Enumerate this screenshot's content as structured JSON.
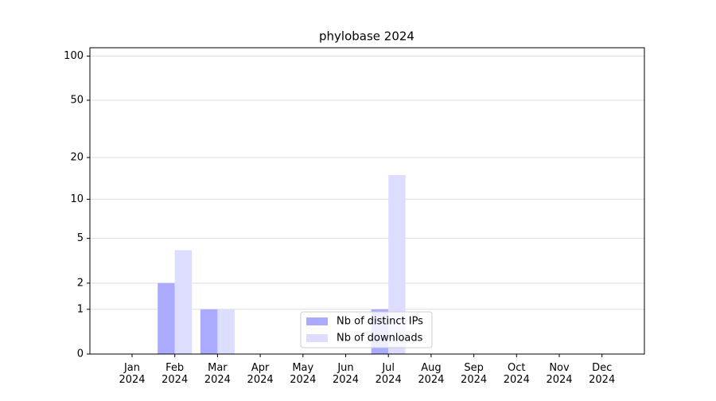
{
  "chart_data": {
    "type": "bar",
    "title": "phylobase 2024",
    "categories": [
      "Jan 2024",
      "Feb 2024",
      "Mar 2024",
      "Apr 2024",
      "May 2024",
      "Jun 2024",
      "Jul 2024",
      "Aug 2024",
      "Sep 2024",
      "Oct 2024",
      "Nov 2024",
      "Dec 2024"
    ],
    "series": [
      {
        "name": "Nb of distinct IPs",
        "color": "#aaaaff",
        "values": [
          0,
          2,
          1,
          0,
          0,
          0,
          1,
          0,
          0,
          0,
          0,
          0
        ]
      },
      {
        "name": "Nb of downloads",
        "color": "#ddddff",
        "values": [
          0,
          4,
          1,
          0,
          0,
          0,
          15,
          0,
          0,
          0,
          0,
          0
        ]
      }
    ],
    "yscale": "log1p",
    "ylim": [
      0,
      114
    ],
    "yticks": [
      0,
      1,
      2,
      5,
      10,
      20,
      50,
      100
    ],
    "grid": true,
    "legend": "lower center"
  }
}
